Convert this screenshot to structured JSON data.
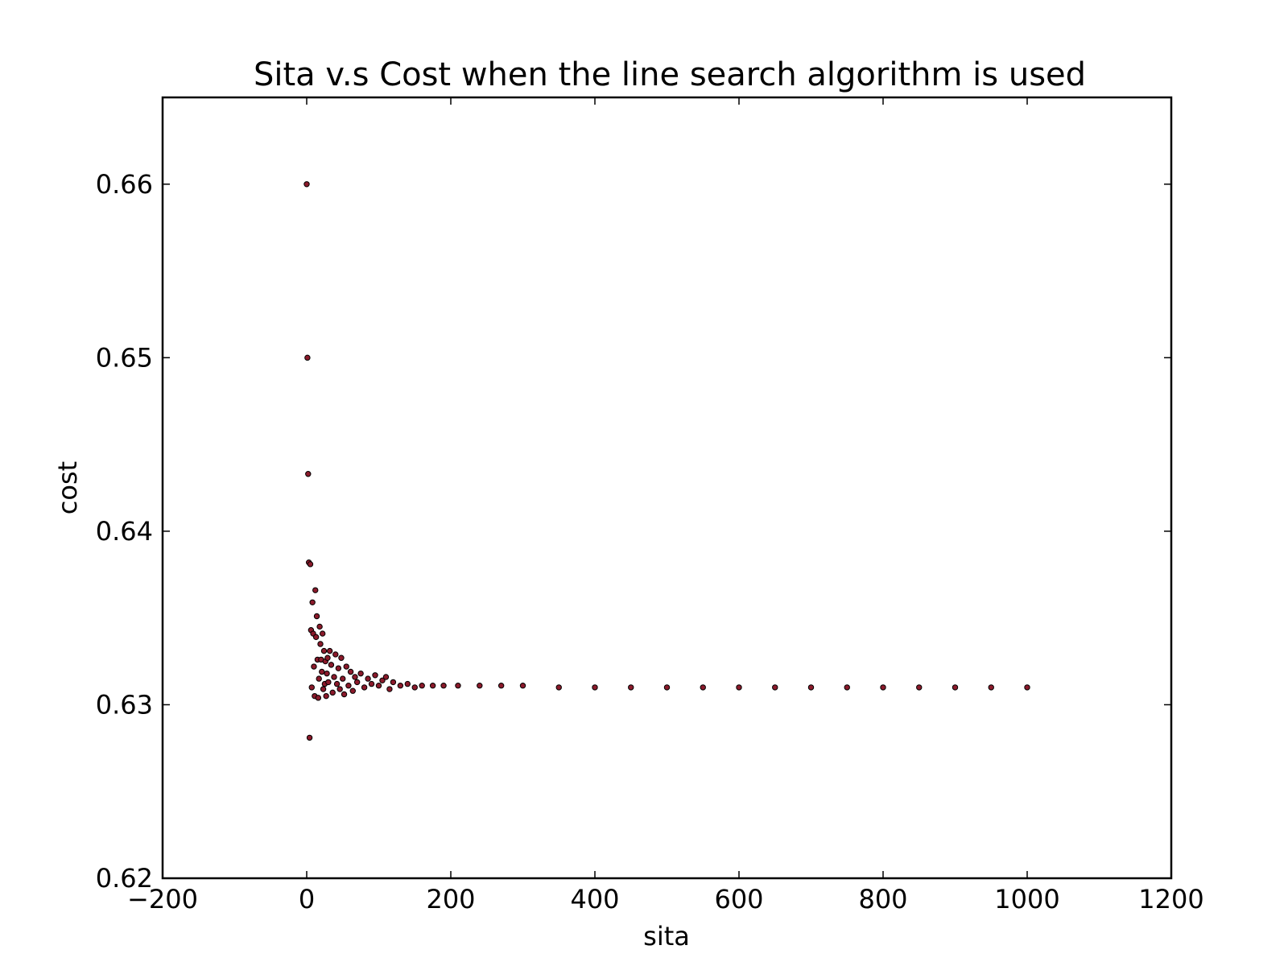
{
  "chart_data": {
    "type": "scatter",
    "title": "Sita v.s Cost when the line search algorithm is used",
    "xlabel": "sita",
    "ylabel": "cost",
    "xlim": [
      -200,
      1200
    ],
    "ylim": [
      0.62,
      0.665
    ],
    "x_ticks": [
      -200,
      0,
      200,
      400,
      600,
      800,
      1000,
      1200
    ],
    "x_tick_labels": [
      "−200",
      "0",
      "200",
      "400",
      "600",
      "800",
      "1000",
      "1200"
    ],
    "y_ticks": [
      0.62,
      0.63,
      0.64,
      0.65,
      0.66
    ],
    "y_tick_labels": [
      "0.62",
      "0.63",
      "0.64",
      "0.65",
      "0.66"
    ],
    "grid": false,
    "legend": "none",
    "marker_fill": "#8b1a2b",
    "marker_edge": "#000000",
    "series": [
      {
        "points": [
          [
            0,
            0.66
          ],
          [
            1,
            0.65
          ],
          [
            2,
            0.6433
          ],
          [
            3,
            0.6382
          ],
          [
            4,
            0.6281
          ],
          [
            5,
            0.6381
          ],
          [
            6,
            0.6343
          ],
          [
            7,
            0.631
          ],
          [
            8,
            0.6359
          ],
          [
            9,
            0.6341
          ],
          [
            10,
            0.6322
          ],
          [
            11,
            0.6305
          ],
          [
            12,
            0.6366
          ],
          [
            13,
            0.6339
          ],
          [
            14,
            0.6351
          ],
          [
            15,
            0.6326
          ],
          [
            16,
            0.6304
          ],
          [
            17,
            0.6315
          ],
          [
            18,
            0.6345
          ],
          [
            19,
            0.6335
          ],
          [
            20,
            0.6326
          ],
          [
            21,
            0.6319
          ],
          [
            22,
            0.6341
          ],
          [
            23,
            0.6309
          ],
          [
            24,
            0.6331
          ],
          [
            25,
            0.6312
          ],
          [
            26,
            0.6325
          ],
          [
            27,
            0.6305
          ],
          [
            28,
            0.6318
          ],
          [
            29,
            0.6327
          ],
          [
            30,
            0.6313
          ],
          [
            32,
            0.6331
          ],
          [
            34,
            0.6323
          ],
          [
            36,
            0.6307
          ],
          [
            38,
            0.6316
          ],
          [
            40,
            0.6329
          ],
          [
            42,
            0.6312
          ],
          [
            44,
            0.6321
          ],
          [
            46,
            0.6309
          ],
          [
            48,
            0.6327
          ],
          [
            50,
            0.6315
          ],
          [
            52,
            0.6306
          ],
          [
            55,
            0.6322
          ],
          [
            58,
            0.6311
          ],
          [
            61,
            0.6319
          ],
          [
            64,
            0.6308
          ],
          [
            67,
            0.6316
          ],
          [
            70,
            0.6313
          ],
          [
            75,
            0.6318
          ],
          [
            80,
            0.631
          ],
          [
            85,
            0.6315
          ],
          [
            90,
            0.6312
          ],
          [
            95,
            0.6317
          ],
          [
            100,
            0.6311
          ],
          [
            105,
            0.6314
          ],
          [
            110,
            0.6316
          ],
          [
            115,
            0.6309
          ],
          [
            120,
            0.6313
          ],
          [
            130,
            0.6311
          ],
          [
            140,
            0.6312
          ],
          [
            150,
            0.631
          ],
          [
            160,
            0.6311
          ],
          [
            175,
            0.6311
          ],
          [
            190,
            0.6311
          ],
          [
            210,
            0.6311
          ],
          [
            240,
            0.6311
          ],
          [
            270,
            0.6311
          ],
          [
            300,
            0.6311
          ],
          [
            350,
            0.631
          ],
          [
            400,
            0.631
          ],
          [
            450,
            0.631
          ],
          [
            500,
            0.631
          ],
          [
            550,
            0.631
          ],
          [
            600,
            0.631
          ],
          [
            650,
            0.631
          ],
          [
            700,
            0.631
          ],
          [
            750,
            0.631
          ],
          [
            800,
            0.631
          ],
          [
            850,
            0.631
          ],
          [
            900,
            0.631
          ],
          [
            950,
            0.631
          ],
          [
            1000,
            0.631
          ]
        ]
      }
    ]
  }
}
